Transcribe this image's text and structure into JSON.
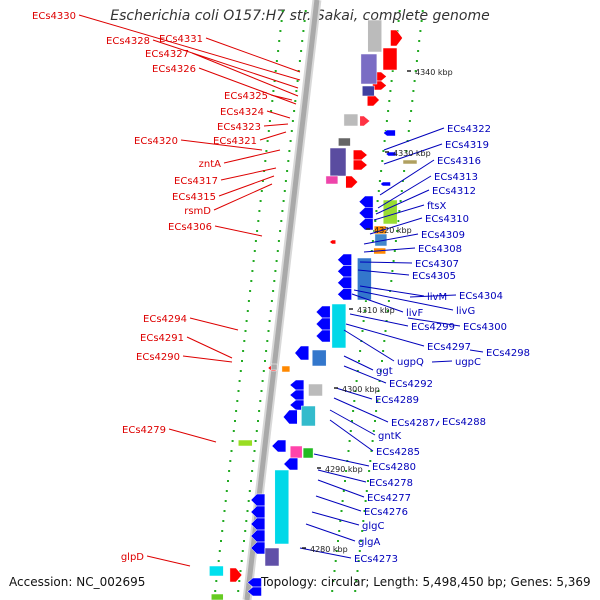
{
  "title": "Escherichia coli O157:H7 str. Sakai, complete genome",
  "footer": {
    "accession_label": "Accession:",
    "accession_value": "NC_002695",
    "topology_label": "Topology:",
    "topology_value": "circular",
    "length_label": "Length:",
    "length_value": "5,498,450 bp",
    "genes_label": "Genes:",
    "genes_value": "5,369"
  },
  "colors": {
    "reverse_strand_label": "#dd0000",
    "forward_strand_label": "#0000bb",
    "backbone": "#a9a9a9",
    "tick": "#22aa22"
  },
  "scale": {
    "unit": "kbp",
    "ticks": [
      "4340 kbp",
      "4330 kbp",
      "4320 kbp",
      "4310 kbp",
      "4300 kbp",
      "4290 kbp",
      "4280 kbp"
    ]
  },
  "left_labels": [
    "ECs4330",
    "ECs4328",
    "ECs4331",
    "ECs4327",
    "ECs4326",
    "ECs4325",
    "ECs4324",
    "ECs4323",
    "ECs4321",
    "ECs4320",
    "zntA",
    "ECs4317",
    "ECs4315",
    "rsmD",
    "ECs4306",
    "ECs4294",
    "ECs4291",
    "ECs4290",
    "ECs4279",
    "glpD"
  ],
  "right_labels": [
    "ECs4322",
    "ECs4319",
    "ECs4316",
    "ECs4313",
    "ECs4312",
    "ftsX",
    "ECs4310",
    "ECs4309",
    "ECs4308",
    "ECs4307",
    "ECs4305",
    "livM",
    "ECs4304",
    "livG",
    "livF",
    "ECs4299",
    "ECs4300",
    "ECs4297",
    "ECs4298",
    "ugpQ",
    "ugpC",
    "ggt",
    "ECs4292",
    "ECs4289",
    "ECs4287",
    "ECs4288",
    "gntK",
    "ECs4285",
    "ECs4280",
    "ECs4278",
    "ECs4277",
    "ECs4276",
    "glgC",
    "glgA",
    "ECs4273"
  ]
}
